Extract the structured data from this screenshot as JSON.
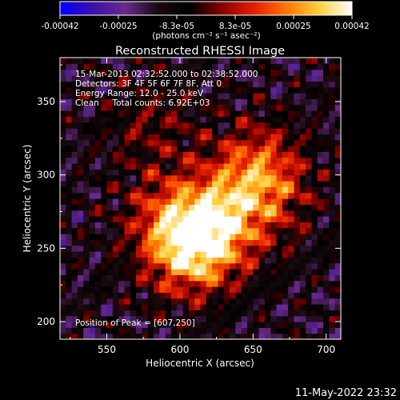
{
  "chart_data": {
    "type": "heatmap",
    "title": "Reconstructed RHESSI Image",
    "xlabel": "Heliocentric X (arcsec)",
    "ylabel": "Heliocentric Y (arcsec)",
    "xlim": [
      518,
      710
    ],
    "ylim": [
      188,
      380
    ],
    "xticks": [
      550,
      600,
      650,
      700
    ],
    "yticks": [
      200,
      250,
      300,
      350
    ],
    "colorbar": {
      "min": -0.00042,
      "max": 0.00042,
      "ticks": [
        "-0.00042",
        "-0.00025",
        "-8.3e-05",
        "8.3e-05",
        "0.00025",
        "0.00042"
      ],
      "unit_label": "(photons cm⁻² s⁻¹ asec⁻²)",
      "colormap": [
        "#0000ff",
        "#3a10a8",
        "#6a2a8e",
        "#1a0a10",
        "#000000",
        "#8a0000",
        "#e62000",
        "#ff7800",
        "#ffd040",
        "#ffffff"
      ]
    },
    "annotations": {
      "time_range": "15-Mar-2013 02:32:52.000 to 02:38:52.000",
      "detectors": "Detectors: 3F 4F 5F 6F 7F 8F, Att 0",
      "energy_range": "Energy Range: 12.0 - 25.0 keV",
      "method_counts": "Clean     Total counts: 6.92E+03",
      "peak_position": "Position of Peak = [607,250]"
    },
    "sources": [
      {
        "x": 607,
        "y": 250,
        "value": 0.00042
      },
      {
        "x": 625,
        "y": 268,
        "value": 0.0003
      },
      {
        "x": 652,
        "y": 305,
        "value": 0.00026
      },
      {
        "x": 660,
        "y": 285,
        "value": 0.00015
      },
      {
        "x": 590,
        "y": 275,
        "value": 0.00016
      },
      {
        "x": 580,
        "y": 335,
        "value": 0.00012
      }
    ]
  },
  "footer_timestamp": "11-May-2022 23:32"
}
